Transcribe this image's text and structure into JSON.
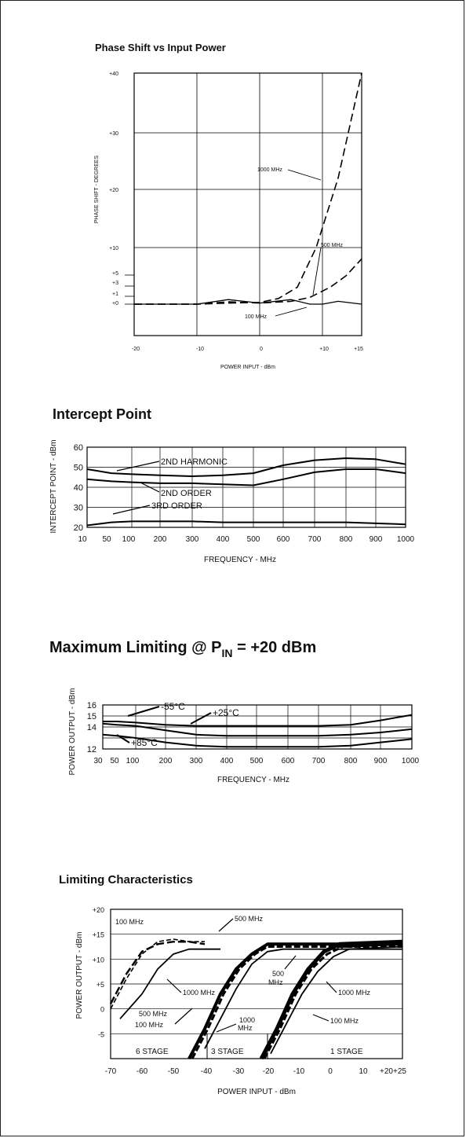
{
  "charts": {
    "phase": {
      "title": "Phase Shift vs Input Power",
      "ylabel": "PHASE SHIFT - DEGREES",
      "xlabel": "POWER INPUT - dBm",
      "yticks": [
        "+40",
        "+30",
        "+20",
        "+10",
        "+5",
        "+3",
        "+1",
        "+0"
      ],
      "xticks": [
        "-20",
        "-10",
        "0",
        "+10",
        "+15"
      ],
      "labels": [
        "1000 MHz",
        "500 MHz",
        "100 MHz"
      ]
    },
    "intercept": {
      "title": "Intercept Point",
      "ylabel": "INTERCEPT POINT - dBm",
      "xlabel": "FREQUENCY - MHz",
      "yticks": [
        "60",
        "50",
        "40",
        "30",
        "20"
      ],
      "xticks": [
        "10",
        "50",
        "100",
        "200",
        "300",
        "400",
        "500",
        "600",
        "700",
        "800",
        "900",
        "1000"
      ],
      "labels": [
        "2ND HARMONIC",
        "2ND ORDER",
        "3RD ORDER"
      ]
    },
    "limiting_max": {
      "title_main": "Maximum Limiting @ P",
      "title_sub": "IN",
      "title_tail": " = +20 dBm",
      "ylabel": "POWER OUTPUT - dBm",
      "xlabel": "FREQUENCY - MHz",
      "yticks": [
        "16",
        "15",
        "14",
        "12"
      ],
      "xticks": [
        "30",
        "50",
        "100",
        "200",
        "300",
        "400",
        "500",
        "600",
        "700",
        "800",
        "900",
        "1000"
      ],
      "labels": [
        "-55°C",
        "+25°C",
        "+85°C"
      ]
    },
    "limiting_char": {
      "title": "Limiting Characteristics",
      "ylabel": "POWER OUTPUT - dBm",
      "xlabel": "POWER INPUT - dBm",
      "yticks": [
        "+20",
        "+15",
        "+10",
        "+5",
        "0",
        "-5"
      ],
      "xticks": [
        "-70",
        "-60",
        "-50",
        "-40",
        "-30",
        "-20",
        "-10",
        "0",
        "10",
        "+20+25"
      ],
      "labels": [
        "100 MHz",
        "500 MHz",
        "1000 MHz",
        "500 MHz",
        "100 MHz",
        "500 MHz",
        "1000 MHz",
        "1000 MHz",
        "100 MHz"
      ],
      "stages": [
        "6 STAGE",
        "3 STAGE",
        "1 STAGE"
      ]
    }
  },
  "chart_data": [
    {
      "type": "line",
      "title": "Phase Shift vs Input Power",
      "xlabel": "POWER INPUT - dBm",
      "ylabel": "PHASE SHIFT - DEGREES",
      "xlim": [
        -20,
        15
      ],
      "ylim": [
        0,
        40
      ],
      "grid": true,
      "series": [
        {
          "name": "1000 MHz",
          "x": [
            -20,
            -15,
            -10,
            -5,
            0,
            3,
            6,
            9,
            12,
            15
          ],
          "y": [
            0,
            0,
            0,
            0.2,
            0.3,
            1,
            3,
            10,
            22,
            40
          ]
        },
        {
          "name": "500 MHz",
          "x": [
            -20,
            -15,
            -10,
            -5,
            0,
            5,
            8,
            11,
            13,
            15
          ],
          "y": [
            0,
            0,
            0,
            0.4,
            0.2,
            0.5,
            1.2,
            3,
            5,
            8
          ]
        },
        {
          "name": "100 MHz",
          "x": [
            -20,
            -15,
            -10,
            -5,
            0,
            5,
            8,
            10,
            12,
            15
          ],
          "y": [
            0,
            0,
            0,
            0.8,
            0.2,
            0.8,
            -0.2,
            -0.6,
            0.5,
            0
          ]
        }
      ]
    },
    {
      "type": "line",
      "title": "Intercept Point",
      "xlabel": "FREQUENCY - MHz",
      "ylabel": "INTERCEPT POINT - dBm",
      "xlim": [
        10,
        1000
      ],
      "ylim": [
        20,
        60
      ],
      "grid": true,
      "series": [
        {
          "name": "2ND HARMONIC",
          "x": [
            10,
            50,
            100,
            200,
            300,
            400,
            500,
            600,
            700,
            800,
            900,
            1000
          ],
          "y": [
            49,
            47,
            46.5,
            46,
            45.5,
            46,
            47,
            51,
            53.5,
            54.5,
            54,
            51.5
          ]
        },
        {
          "name": "2ND ORDER",
          "x": [
            10,
            50,
            100,
            200,
            300,
            400,
            500,
            600,
            700,
            800,
            900,
            1000
          ],
          "y": [
            44,
            43,
            42.5,
            42,
            42,
            41.5,
            41,
            44,
            47.5,
            49,
            49,
            47
          ]
        },
        {
          "name": "3RD ORDER",
          "x": [
            10,
            50,
            100,
            200,
            300,
            400,
            500,
            600,
            700,
            800,
            900,
            1000
          ],
          "y": [
            21,
            22.5,
            23,
            23,
            23,
            22.5,
            22.5,
            22.5,
            22.5,
            22.5,
            22,
            21.5
          ]
        }
      ]
    },
    {
      "type": "line",
      "title": "Maximum Limiting @ PIN = +20 dBm",
      "xlabel": "FREQUENCY - MHz",
      "ylabel": "POWER OUTPUT - dBm",
      "xlim": [
        30,
        1000
      ],
      "ylim": [
        12,
        16
      ],
      "grid": true,
      "series": [
        {
          "name": "-55°C",
          "x": [
            30,
            50,
            100,
            200,
            300,
            400,
            500,
            600,
            700,
            800,
            900,
            1000
          ],
          "y": [
            14.5,
            14.5,
            14.4,
            14.2,
            14.1,
            14.1,
            14.1,
            14.1,
            14.1,
            14.2,
            14.6,
            15.1
          ]
        },
        {
          "name": "+25°C",
          "x": [
            30,
            50,
            100,
            200,
            300,
            400,
            500,
            600,
            700,
            800,
            900,
            1000
          ],
          "y": [
            14.3,
            14.2,
            14.1,
            13.7,
            13.3,
            13.2,
            13.2,
            13.2,
            13.2,
            13.3,
            13.5,
            13.8
          ]
        },
        {
          "name": "+85°C",
          "x": [
            30,
            50,
            100,
            200,
            300,
            400,
            500,
            600,
            700,
            800,
            900,
            1000
          ],
          "y": [
            13.3,
            13.2,
            13.0,
            12.6,
            12.3,
            12.2,
            12.2,
            12.2,
            12.2,
            12.3,
            12.6,
            12.9
          ]
        }
      ]
    },
    {
      "type": "line",
      "title": "Limiting Characteristics",
      "xlabel": "POWER INPUT - dBm",
      "ylabel": "POWER OUTPUT - dBm",
      "xlim": [
        -70,
        25
      ],
      "ylim": [
        -10,
        20
      ],
      "grid": true,
      "series": [
        {
          "name": "6 STAGE 100 MHz",
          "x": [
            -70,
            -65,
            -60,
            -55,
            -50,
            -45,
            -40
          ],
          "y": [
            0,
            6,
            11,
            13.5,
            14,
            13.5,
            13.5
          ]
        },
        {
          "name": "6 STAGE 500 MHz",
          "x": [
            -70,
            -65,
            -60,
            -55,
            -50,
            -45,
            -40
          ],
          "y": [
            1,
            7,
            11.5,
            13,
            13.5,
            13.5,
            13
          ]
        },
        {
          "name": "6 STAGE 1000 MHz",
          "x": [
            -67,
            -60,
            -55,
            -50,
            -45,
            -40,
            -35
          ],
          "y": [
            -2,
            3,
            8,
            11,
            12,
            12,
            12
          ]
        },
        {
          "name": "3 STAGE 100 MHz",
          "x": [
            -45,
            -40,
            -35,
            -30,
            -25,
            -20,
            25
          ],
          "y": [
            -10,
            -4,
            3,
            8,
            11,
            13,
            13
          ]
        },
        {
          "name": "3 STAGE 500 MHz",
          "x": [
            -44,
            -39,
            -34,
            -29,
            -24,
            -20,
            25
          ],
          "y": [
            -10,
            -4,
            3,
            8,
            11,
            12.5,
            12.5
          ]
        },
        {
          "name": "3 STAGE 1000 MHz",
          "x": [
            -40,
            -35,
            -30,
            -25,
            -20,
            -15,
            25
          ],
          "y": [
            -8,
            -2,
            4,
            9,
            11.5,
            12,
            12
          ]
        },
        {
          "name": "1 STAGE 100 MHz",
          "x": [
            -22,
            -17,
            -12,
            -7,
            -2,
            3,
            25
          ],
          "y": [
            -10,
            -4,
            3,
            8,
            11.5,
            13,
            13.5
          ]
        },
        {
          "name": "1 STAGE 500 MHz",
          "x": [
            -21,
            -16,
            -11,
            -6,
            -1,
            4,
            25
          ],
          "y": [
            -10,
            -4,
            3,
            8,
            11,
            12.5,
            13
          ]
        },
        {
          "name": "1 STAGE 1000 MHz",
          "x": [
            -19,
            -14,
            -9,
            -4,
            1,
            6,
            25
          ],
          "y": [
            -9,
            -3,
            3,
            7.5,
            10.5,
            12,
            12.5
          ]
        }
      ]
    }
  ]
}
